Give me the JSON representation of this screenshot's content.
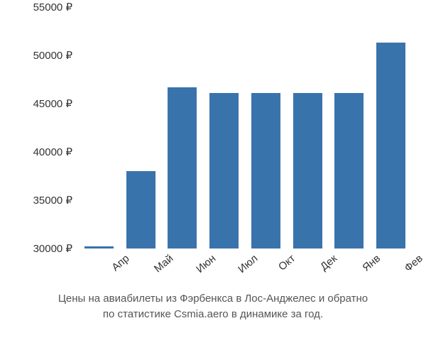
{
  "chart": {
    "type": "bar",
    "background_color": "#ffffff",
    "text_color": "#333333",
    "tick_fontsize": 15,
    "caption_fontsize": 15,
    "caption_color": "#555555",
    "ylim": [
      30000,
      55000
    ],
    "ytick_step": 5000,
    "y_ticks": [
      30000,
      35000,
      40000,
      45000,
      50000,
      55000
    ],
    "y_tick_labels": [
      "30000 ₽",
      "35000 ₽",
      "40000 ₽",
      "45000 ₽",
      "50000 ₽",
      "55000 ₽"
    ],
    "categories": [
      "Апр",
      "Май",
      "Июн",
      "Июл",
      "Окт",
      "Дек",
      "Янв",
      "Фев"
    ],
    "values": [
      30200,
      38000,
      46700,
      46100,
      46100,
      46100,
      46100,
      51300
    ],
    "bar_color": "#3973ac",
    "bar_width_ratio": 0.7,
    "x_tick_rotation_deg": -40,
    "caption_line1": "Цены на авиабилеты из Фэрбенкса в Лос-Анджелес и обратно",
    "caption_line2": "по статистике Csmia.aero в динамике за год."
  }
}
